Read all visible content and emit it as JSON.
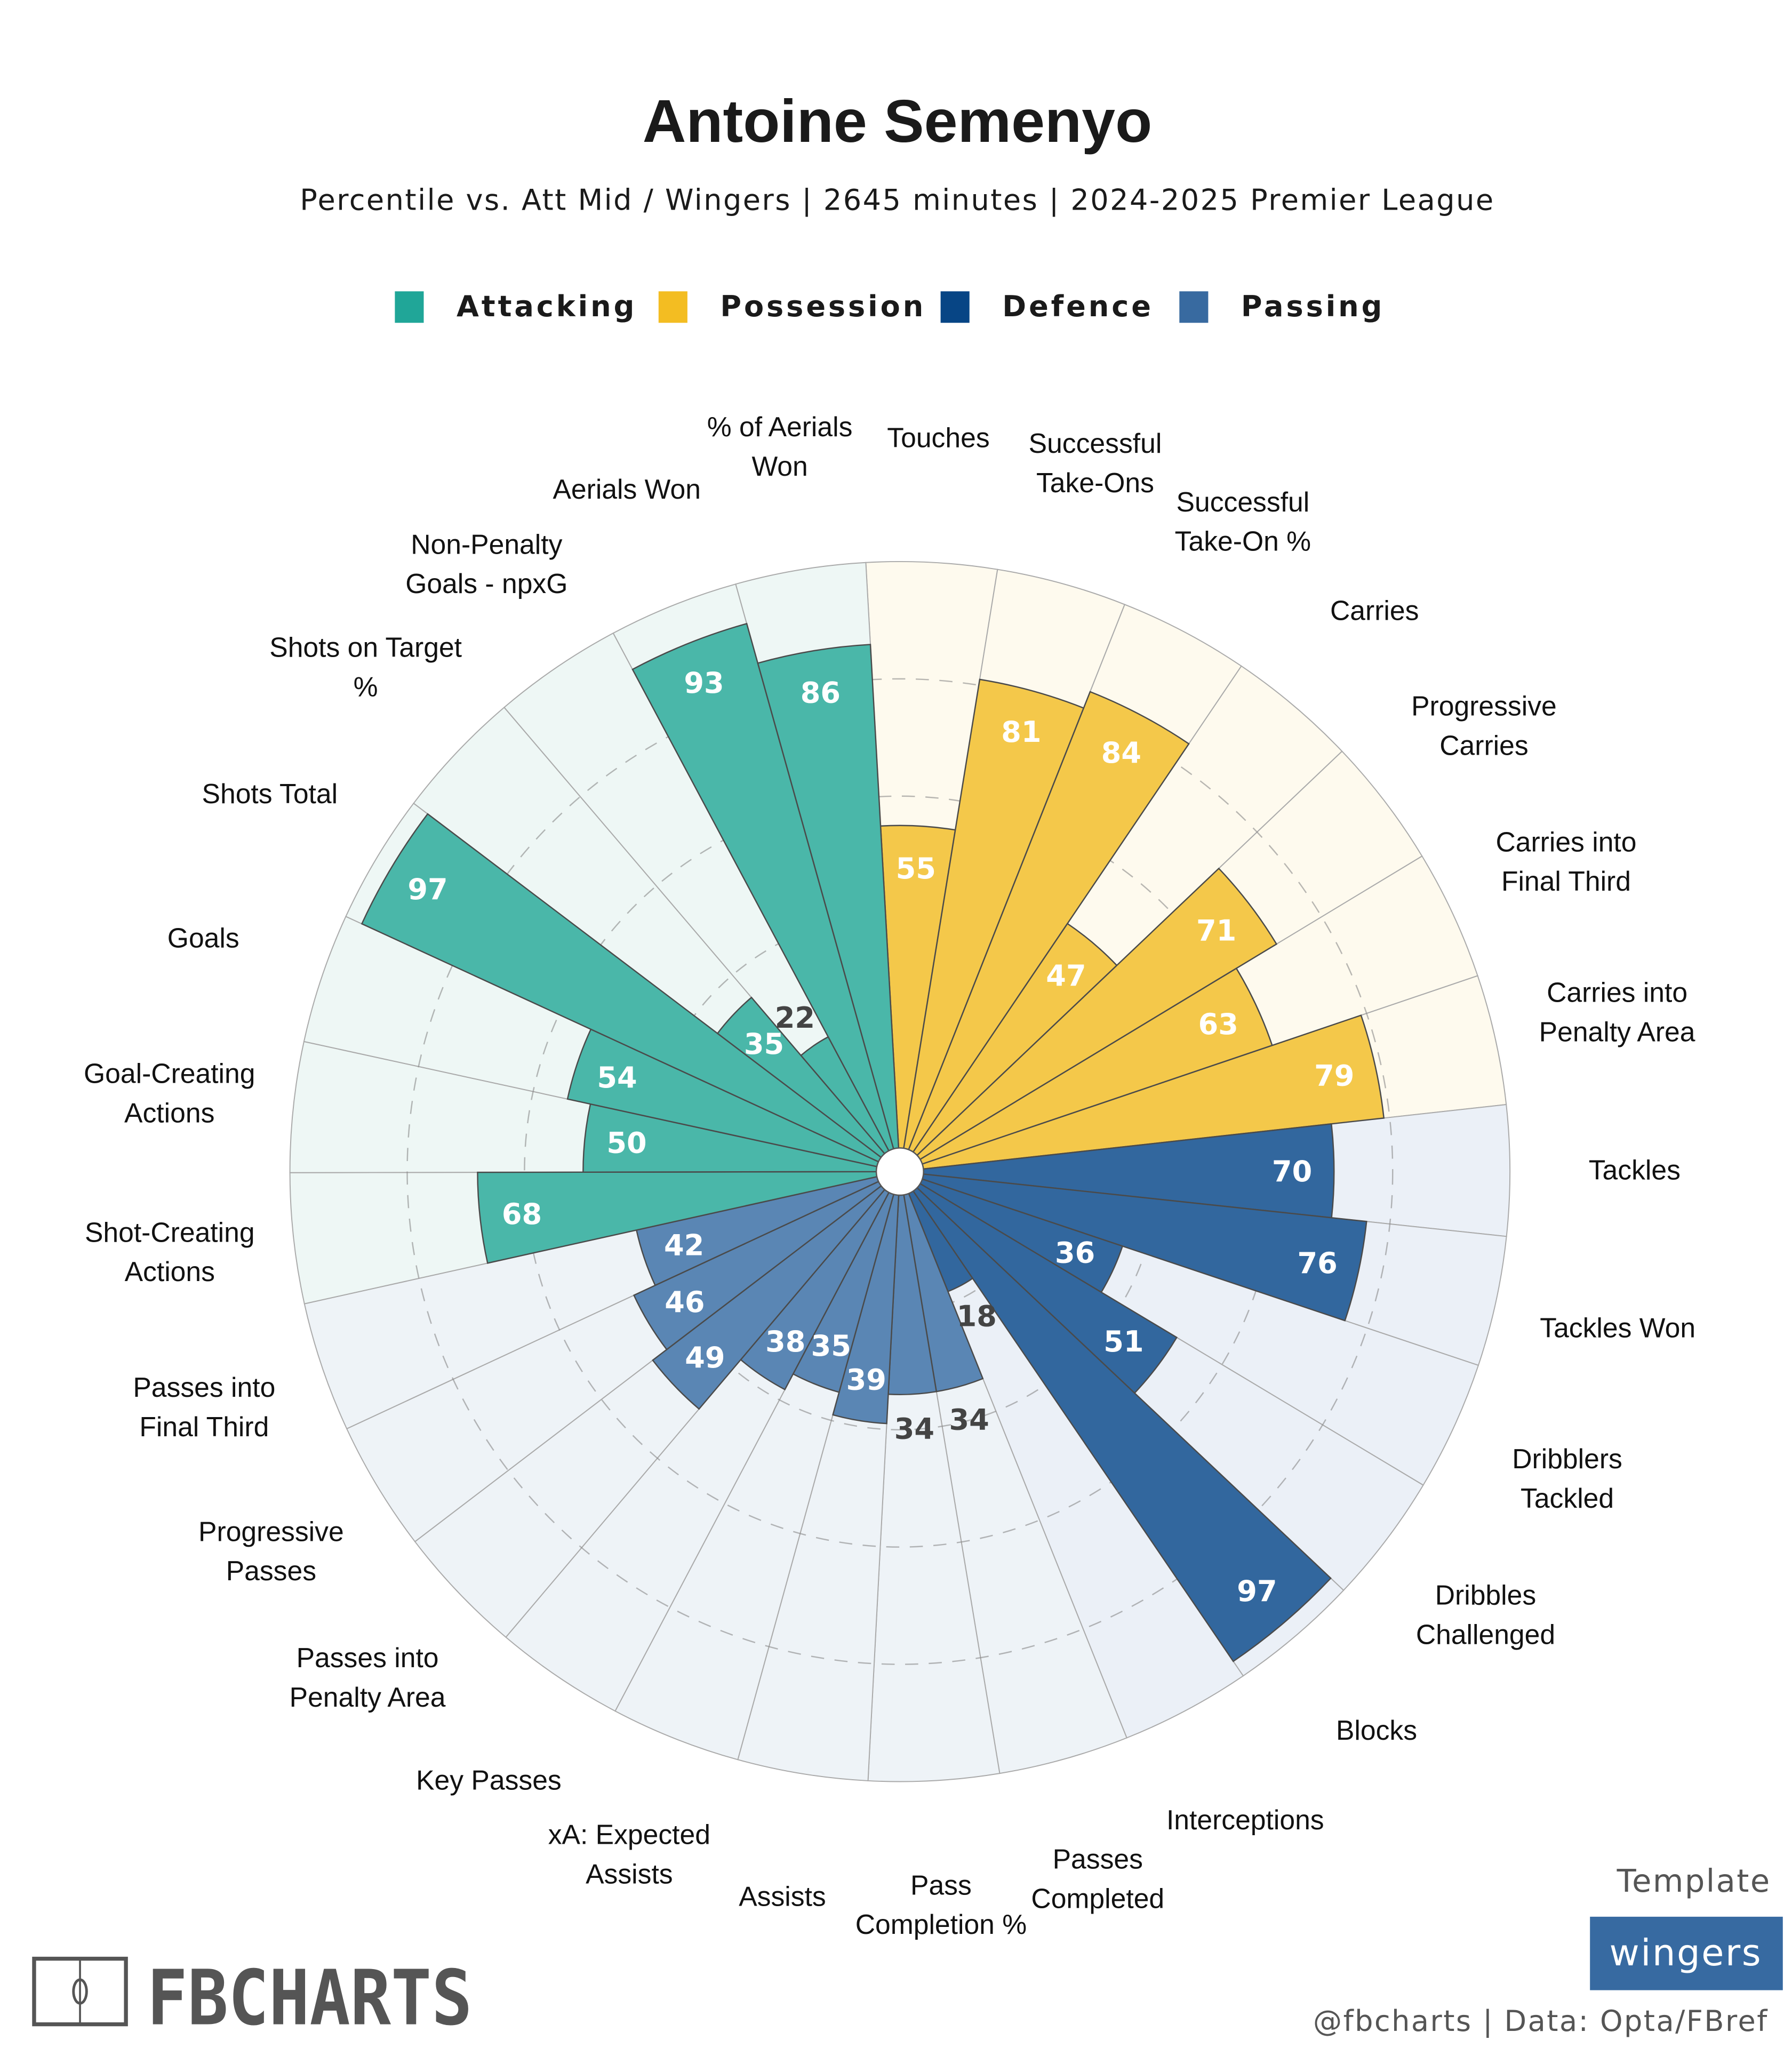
{
  "title": "Antoine Semenyo",
  "subtitle": "Percentile vs. Att Mid / Wingers | 2645 minutes | 2024-2025 Premier League",
  "legend": [
    {
      "label": "Attacking",
      "color": "#20a698"
    },
    {
      "label": "Possession",
      "color": "#f3bd22"
    },
    {
      "label": "Defence",
      "color": "#074585"
    },
    {
      "label": "Passing",
      "color": "#386aa0"
    }
  ],
  "footer": {
    "template_label": "Template",
    "template_name": "wingers",
    "credit": "@fbcharts | Data: Opta/FBref",
    "logo_text": "FBCHARTS"
  },
  "chart_data": {
    "type": "polar-bar",
    "title": "Antoine Semenyo",
    "subtitle": "Percentile vs. Att Mid / Wingers | 2645 minutes | 2024-2025 Premier League",
    "rlim": [
      0,
      100
    ],
    "grid": [
      20,
      40,
      60,
      80
    ],
    "legend_placement": "top",
    "group_colors": {
      "Attacking": {
        "bar": "#4ab7a9",
        "bg": "#eef7f5"
      },
      "Possession": {
        "bar": "#f4c84a",
        "bg": "#fefaee"
      },
      "Defence": {
        "bar": "#32679e",
        "bg": "#ebf0f7"
      },
      "Passing": {
        "bar": "#5a86b4",
        "bg": "#eef3f7"
      }
    },
    "categories": [
      {
        "label": "Touches",
        "value": 55,
        "group": "Possession"
      },
      {
        "label": "Successful\nTake-Ons",
        "value": 81,
        "group": "Possession"
      },
      {
        "label": "Successful\nTake-On %",
        "value": 84,
        "group": "Possession"
      },
      {
        "label": "Carries",
        "value": 47,
        "group": "Possession"
      },
      {
        "label": "Progressive\nCarries",
        "value": 71,
        "group": "Possession"
      },
      {
        "label": "Carries into\nFinal Third",
        "value": 63,
        "group": "Possession"
      },
      {
        "label": "Carries into\nPenalty Area",
        "value": 79,
        "group": "Possession"
      },
      {
        "label": "Tackles",
        "value": 70,
        "group": "Defence"
      },
      {
        "label": "Tackles Won",
        "value": 76,
        "group": "Defence"
      },
      {
        "label": "Dribblers\nTackled",
        "value": 36,
        "group": "Defence"
      },
      {
        "label": "Dribbles\nChallenged",
        "value": 51,
        "group": "Defence"
      },
      {
        "label": "Blocks",
        "value": 97,
        "group": "Defence"
      },
      {
        "label": "Interceptions",
        "value": 18,
        "group": "Defence"
      },
      {
        "label": "Passes\nCompleted",
        "value": 34,
        "group": "Passing"
      },
      {
        "label": "Pass\nCompletion %",
        "value": 34,
        "group": "Passing"
      },
      {
        "label": "Assists",
        "value": 39,
        "group": "Passing"
      },
      {
        "label": "xA: Expected\nAssists",
        "value": 35,
        "group": "Passing"
      },
      {
        "label": "Key Passes",
        "value": 38,
        "group": "Passing"
      },
      {
        "label": "Passes into\nPenalty Area",
        "value": 49,
        "group": "Passing"
      },
      {
        "label": "Progressive\nPasses",
        "value": 46,
        "group": "Passing"
      },
      {
        "label": "Passes into\nFinal Third",
        "value": 42,
        "group": "Passing"
      },
      {
        "label": "Shot-Creating\nActions",
        "value": 68,
        "group": "Attacking"
      },
      {
        "label": "Goal-Creating\nActions",
        "value": 50,
        "group": "Attacking"
      },
      {
        "label": "Goals",
        "value": 54,
        "group": "Attacking"
      },
      {
        "label": "Shots Total",
        "value": 97,
        "group": "Attacking"
      },
      {
        "label": "Shots on Target\n%",
        "value": 35,
        "group": "Attacking"
      },
      {
        "label": "Non-Penalty\nGoals - npxG",
        "value": 22,
        "group": "Attacking"
      },
      {
        "label": "Aerials Won",
        "value": 93,
        "group": "Attacking"
      },
      {
        "label": "% of Aerials\nWon",
        "value": 86,
        "group": "Attacking"
      }
    ]
  }
}
